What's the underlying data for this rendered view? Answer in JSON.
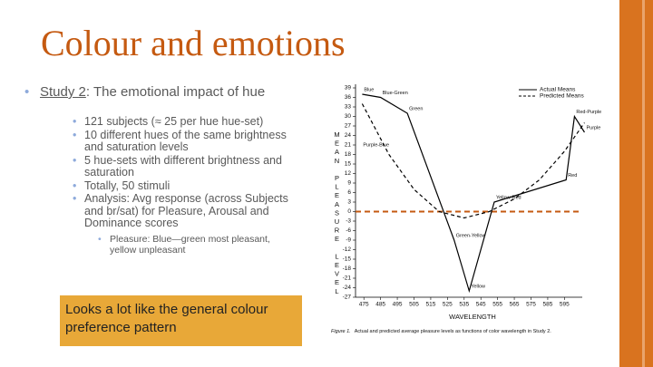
{
  "slide": {
    "title": "Colour and emotions",
    "main_bullet": {
      "link": "Study 2",
      "text": ": The emotional impact of hue"
    },
    "sub_bullets": [
      "121 subjects (≈ 25 per hue hue-set)",
      "10 different hues of the same brightness and saturation levels",
      "5 hue-sets with different brightness and saturation",
      "Totally, 50 stimuli",
      "Analysis: Avg response (across Subjects and br/sat) for Pleasure, Arousal and Dominance scores"
    ],
    "sub_sub_bullets": [
      "Pleasure: Blue—green most pleasant, yellow unpleasant"
    ],
    "callout": "Looks a lot like the general colour preference pattern"
  },
  "chart_data": {
    "type": "line",
    "y_label": "MEAN PLEASURE LEVEL",
    "x_label": "WAVELENGTH",
    "caption_label": "Figure 1.",
    "caption": "Actual and predicted average pleasure levels as functions of color wavelength in Study 2.",
    "xlim": [
      470,
      610
    ],
    "xticks": [
      475,
      485,
      495,
      505,
      515,
      525,
      535,
      545,
      555,
      565,
      575,
      585,
      595
    ],
    "ylim": [
      -27,
      39
    ],
    "yticks": [
      39,
      36,
      33,
      30,
      27,
      24,
      21,
      18,
      15,
      12,
      9,
      6,
      3,
      0,
      -3,
      -6,
      -9,
      -12,
      -15,
      -18,
      -21,
      -24,
      -27
    ],
    "legend": "top-right",
    "series": [
      {
        "name": "Actual Means",
        "color": "#000000",
        "dash": false,
        "x": [
          474,
          485,
          501,
          529,
          538,
          553,
          596,
          601,
          607
        ],
        "values": [
          37,
          36,
          31,
          -9,
          -25,
          3,
          10,
          30,
          25
        ],
        "point_labels": [
          "Blue",
          "Blue-Green",
          "Green",
          "Green-Yellow",
          "Yellow",
          "Yellow-Red",
          "Red",
          "Red-Purple",
          "Purple"
        ]
      },
      {
        "name": "Predicted Means",
        "color": "#000000",
        "dash": true,
        "x": [
          474,
          490,
          505,
          520,
          535,
          550,
          565,
          580,
          595,
          607
        ],
        "values": [
          34,
          18,
          7,
          0,
          -2,
          0,
          4,
          10,
          19,
          28
        ]
      }
    ],
    "annotations": [
      {
        "text": "Purple-Blue",
        "x": 474,
        "y": 21
      }
    ],
    "reference_line": {
      "y": 0,
      "color": "#c55a11",
      "dash": true
    }
  }
}
